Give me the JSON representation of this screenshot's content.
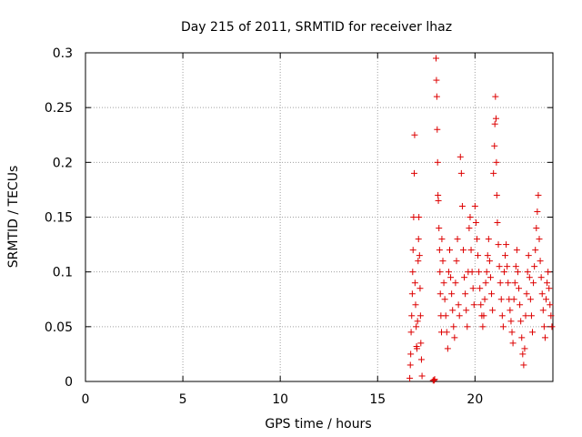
{
  "chart_data": {
    "type": "scatter",
    "title": "Day 215 of 2011, SRMTID for receiver lhaz",
    "xlabel": "GPS time / hours",
    "ylabel": "SRMTID / TECUs",
    "xlim": [
      0,
      24
    ],
    "ylim": [
      0,
      0.3
    ],
    "grid": true,
    "marker": "+",
    "color": "#dd0000",
    "xticks": [
      0,
      5,
      10,
      15,
      20
    ],
    "yticks": [
      0,
      0.05,
      0.1,
      0.15,
      0.2,
      0.25,
      0.3
    ],
    "xtick_labels": [
      "0",
      "5",
      "10",
      "15",
      "20"
    ],
    "ytick_labels": [
      "0",
      "0.05",
      "0.1",
      "0.15",
      "0.2",
      "0.25",
      "0.3"
    ],
    "series": [
      {
        "name": "SRMTID",
        "points": [
          [
            16.65,
            0.003
          ],
          [
            16.68,
            0.015
          ],
          [
            16.7,
            0.025
          ],
          [
            16.72,
            0.045
          ],
          [
            16.75,
            0.06
          ],
          [
            16.78,
            0.08
          ],
          [
            16.8,
            0.1
          ],
          [
            16.82,
            0.12
          ],
          [
            16.85,
            0.15
          ],
          [
            16.88,
            0.19
          ],
          [
            16.9,
            0.225
          ],
          [
            16.92,
            0.09
          ],
          [
            16.95,
            0.07
          ],
          [
            16.98,
            0.05
          ],
          [
            17.0,
            0.032
          ],
          [
            17.02,
            0.03
          ],
          [
            17.05,
            0.055
          ],
          [
            17.08,
            0.11
          ],
          [
            17.1,
            0.13
          ],
          [
            17.12,
            0.15
          ],
          [
            17.15,
            0.115
          ],
          [
            17.18,
            0.085
          ],
          [
            17.2,
            0.06
          ],
          [
            17.22,
            0.035
          ],
          [
            17.25,
            0.02
          ],
          [
            17.28,
            0.005
          ],
          [
            17.85,
            0.001
          ],
          [
            17.9,
            0.001
          ],
          [
            17.93,
            0.002
          ],
          [
            18.0,
            0.295
          ],
          [
            18.02,
            0.275
          ],
          [
            18.04,
            0.26
          ],
          [
            18.06,
            0.23
          ],
          [
            18.08,
            0.2
          ],
          [
            18.1,
            0.17
          ],
          [
            18.12,
            0.165
          ],
          [
            18.15,
            0.14
          ],
          [
            18.18,
            0.12
          ],
          [
            18.2,
            0.1
          ],
          [
            18.22,
            0.08
          ],
          [
            18.25,
            0.06
          ],
          [
            18.28,
            0.045
          ],
          [
            18.3,
            0.13
          ],
          [
            18.35,
            0.11
          ],
          [
            18.4,
            0.09
          ],
          [
            18.45,
            0.075
          ],
          [
            18.5,
            0.06
          ],
          [
            18.55,
            0.045
          ],
          [
            18.6,
            0.03
          ],
          [
            18.65,
            0.1
          ],
          [
            18.7,
            0.12
          ],
          [
            18.75,
            0.095
          ],
          [
            18.8,
            0.08
          ],
          [
            18.85,
            0.065
          ],
          [
            18.9,
            0.05
          ],
          [
            18.95,
            0.04
          ],
          [
            19.0,
            0.09
          ],
          [
            19.05,
            0.11
          ],
          [
            19.1,
            0.13
          ],
          [
            19.15,
            0.07
          ],
          [
            19.2,
            0.06
          ],
          [
            19.25,
            0.205
          ],
          [
            19.3,
            0.19
          ],
          [
            19.35,
            0.16
          ],
          [
            19.4,
            0.12
          ],
          [
            19.45,
            0.095
          ],
          [
            19.5,
            0.08
          ],
          [
            19.55,
            0.065
          ],
          [
            19.6,
            0.05
          ],
          [
            19.65,
            0.1
          ],
          [
            19.7,
            0.14
          ],
          [
            19.75,
            0.15
          ],
          [
            19.8,
            0.12
          ],
          [
            19.85,
            0.1
          ],
          [
            19.9,
            0.085
          ],
          [
            19.95,
            0.07
          ],
          [
            20.0,
            0.16
          ],
          [
            20.05,
            0.145
          ],
          [
            20.1,
            0.13
          ],
          [
            20.15,
            0.115
          ],
          [
            20.2,
            0.1
          ],
          [
            20.25,
            0.085
          ],
          [
            20.3,
            0.07
          ],
          [
            20.35,
            0.06
          ],
          [
            20.4,
            0.05
          ],
          [
            20.45,
            0.06
          ],
          [
            20.5,
            0.075
          ],
          [
            20.55,
            0.09
          ],
          [
            20.6,
            0.1
          ],
          [
            20.65,
            0.115
          ],
          [
            20.7,
            0.13
          ],
          [
            20.75,
            0.11
          ],
          [
            20.8,
            0.095
          ],
          [
            20.85,
            0.08
          ],
          [
            20.9,
            0.065
          ],
          [
            20.95,
            0.19
          ],
          [
            21.0,
            0.215
          ],
          [
            21.02,
            0.235
          ],
          [
            21.05,
            0.26
          ],
          [
            21.08,
            0.24
          ],
          [
            21.1,
            0.2
          ],
          [
            21.12,
            0.17
          ],
          [
            21.15,
            0.145
          ],
          [
            21.2,
            0.125
          ],
          [
            21.25,
            0.105
          ],
          [
            21.3,
            0.09
          ],
          [
            21.35,
            0.075
          ],
          [
            21.4,
            0.06
          ],
          [
            21.45,
            0.05
          ],
          [
            21.5,
            0.1
          ],
          [
            21.55,
            0.115
          ],
          [
            21.6,
            0.125
          ],
          [
            21.65,
            0.105
          ],
          [
            21.7,
            0.09
          ],
          [
            21.75,
            0.075
          ],
          [
            21.8,
            0.065
          ],
          [
            21.85,
            0.055
          ],
          [
            21.9,
            0.045
          ],
          [
            21.95,
            0.035
          ],
          [
            22.0,
            0.075
          ],
          [
            22.05,
            0.09
          ],
          [
            22.1,
            0.105
          ],
          [
            22.15,
            0.12
          ],
          [
            22.2,
            0.1
          ],
          [
            22.25,
            0.085
          ],
          [
            22.3,
            0.07
          ],
          [
            22.35,
            0.055
          ],
          [
            22.4,
            0.04
          ],
          [
            22.45,
            0.025
          ],
          [
            22.5,
            0.015
          ],
          [
            22.55,
            0.03
          ],
          [
            22.6,
            0.06
          ],
          [
            22.65,
            0.08
          ],
          [
            22.7,
            0.1
          ],
          [
            22.75,
            0.115
          ],
          [
            22.8,
            0.095
          ],
          [
            22.85,
            0.075
          ],
          [
            22.9,
            0.06
          ],
          [
            22.95,
            0.045
          ],
          [
            23.0,
            0.09
          ],
          [
            23.05,
            0.105
          ],
          [
            23.1,
            0.12
          ],
          [
            23.15,
            0.14
          ],
          [
            23.2,
            0.155
          ],
          [
            23.25,
            0.17
          ],
          [
            23.3,
            0.13
          ],
          [
            23.35,
            0.11
          ],
          [
            23.4,
            0.095
          ],
          [
            23.45,
            0.08
          ],
          [
            23.5,
            0.065
          ],
          [
            23.55,
            0.05
          ],
          [
            23.6,
            0.04
          ],
          [
            23.65,
            0.075
          ],
          [
            23.7,
            0.09
          ],
          [
            23.75,
            0.1
          ],
          [
            23.8,
            0.085
          ],
          [
            23.85,
            0.07
          ],
          [
            23.9,
            0.06
          ],
          [
            23.95,
            0.05
          ]
        ]
      }
    ]
  }
}
